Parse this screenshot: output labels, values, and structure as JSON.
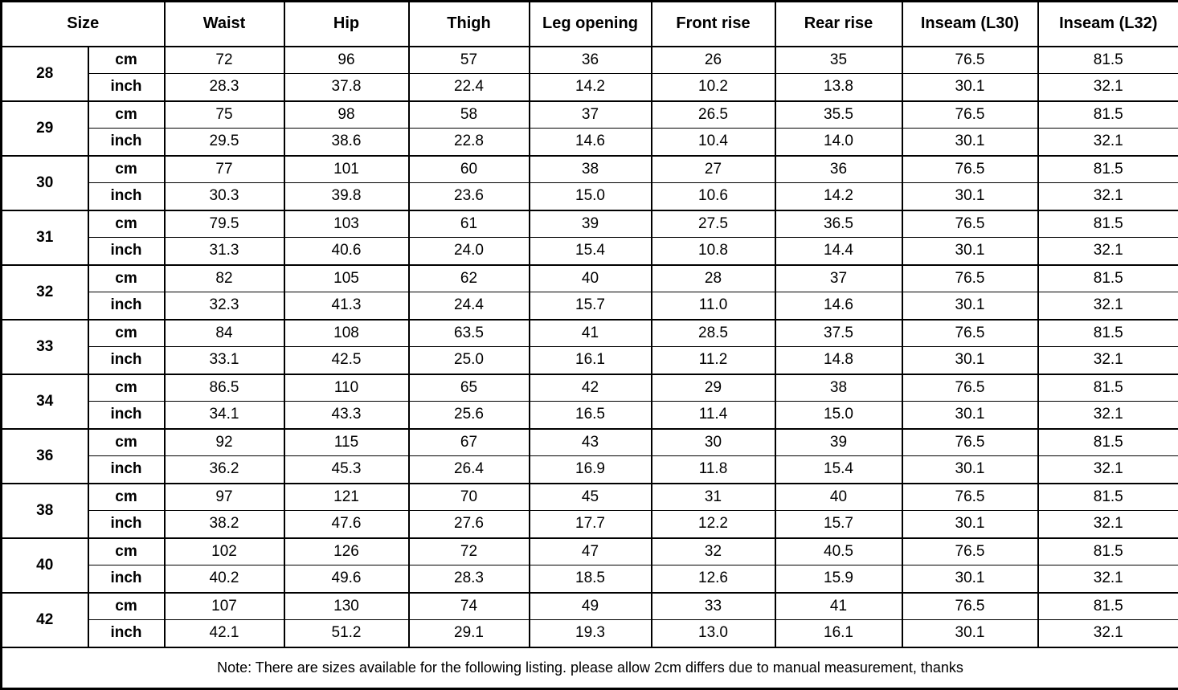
{
  "colors": {
    "background": "#ffffff",
    "border": "#000000",
    "text": "#000000"
  },
  "table": {
    "header": [
      "Size",
      "Waist",
      "Hip",
      "Thigh",
      "Leg opening",
      "Front rise",
      "Rear rise",
      "Inseam (L30)",
      "Inseam (L32)"
    ],
    "unit_labels": [
      "cm",
      "inch"
    ],
    "rows": [
      {
        "size": "28",
        "cm": [
          "72",
          "96",
          "57",
          "36",
          "26",
          "35",
          "76.5",
          "81.5"
        ],
        "inch": [
          "28.3",
          "37.8",
          "22.4",
          "14.2",
          "10.2",
          "13.8",
          "30.1",
          "32.1"
        ]
      },
      {
        "size": "29",
        "cm": [
          "75",
          "98",
          "58",
          "37",
          "26.5",
          "35.5",
          "76.5",
          "81.5"
        ],
        "inch": [
          "29.5",
          "38.6",
          "22.8",
          "14.6",
          "10.4",
          "14.0",
          "30.1",
          "32.1"
        ]
      },
      {
        "size": "30",
        "cm": [
          "77",
          "101",
          "60",
          "38",
          "27",
          "36",
          "76.5",
          "81.5"
        ],
        "inch": [
          "30.3",
          "39.8",
          "23.6",
          "15.0",
          "10.6",
          "14.2",
          "30.1",
          "32.1"
        ]
      },
      {
        "size": "31",
        "cm": [
          "79.5",
          "103",
          "61",
          "39",
          "27.5",
          "36.5",
          "76.5",
          "81.5"
        ],
        "inch": [
          "31.3",
          "40.6",
          "24.0",
          "15.4",
          "10.8",
          "14.4",
          "30.1",
          "32.1"
        ]
      },
      {
        "size": "32",
        "cm": [
          "82",
          "105",
          "62",
          "40",
          "28",
          "37",
          "76.5",
          "81.5"
        ],
        "inch": [
          "32.3",
          "41.3",
          "24.4",
          "15.7",
          "11.0",
          "14.6",
          "30.1",
          "32.1"
        ]
      },
      {
        "size": "33",
        "cm": [
          "84",
          "108",
          "63.5",
          "41",
          "28.5",
          "37.5",
          "76.5",
          "81.5"
        ],
        "inch": [
          "33.1",
          "42.5",
          "25.0",
          "16.1",
          "11.2",
          "14.8",
          "30.1",
          "32.1"
        ]
      },
      {
        "size": "34",
        "cm": [
          "86.5",
          "110",
          "65",
          "42",
          "29",
          "38",
          "76.5",
          "81.5"
        ],
        "inch": [
          "34.1",
          "43.3",
          "25.6",
          "16.5",
          "11.4",
          "15.0",
          "30.1",
          "32.1"
        ]
      },
      {
        "size": "36",
        "cm": [
          "92",
          "115",
          "67",
          "43",
          "30",
          "39",
          "76.5",
          "81.5"
        ],
        "inch": [
          "36.2",
          "45.3",
          "26.4",
          "16.9",
          "11.8",
          "15.4",
          "30.1",
          "32.1"
        ]
      },
      {
        "size": "38",
        "cm": [
          "97",
          "121",
          "70",
          "45",
          "31",
          "40",
          "76.5",
          "81.5"
        ],
        "inch": [
          "38.2",
          "47.6",
          "27.6",
          "17.7",
          "12.2",
          "15.7",
          "30.1",
          "32.1"
        ]
      },
      {
        "size": "40",
        "cm": [
          "102",
          "126",
          "72",
          "47",
          "32",
          "40.5",
          "76.5",
          "81.5"
        ],
        "inch": [
          "40.2",
          "49.6",
          "28.3",
          "18.5",
          "12.6",
          "15.9",
          "30.1",
          "32.1"
        ]
      },
      {
        "size": "42",
        "cm": [
          "107",
          "130",
          "74",
          "49",
          "33",
          "41",
          "76.5",
          "81.5"
        ],
        "inch": [
          "42.1",
          "51.2",
          "29.1",
          "19.3",
          "13.0",
          "16.1",
          "30.1",
          "32.1"
        ]
      }
    ],
    "note": "Note: There are sizes available for the following listing. please allow 2cm differs due to manual measurement, thanks"
  }
}
